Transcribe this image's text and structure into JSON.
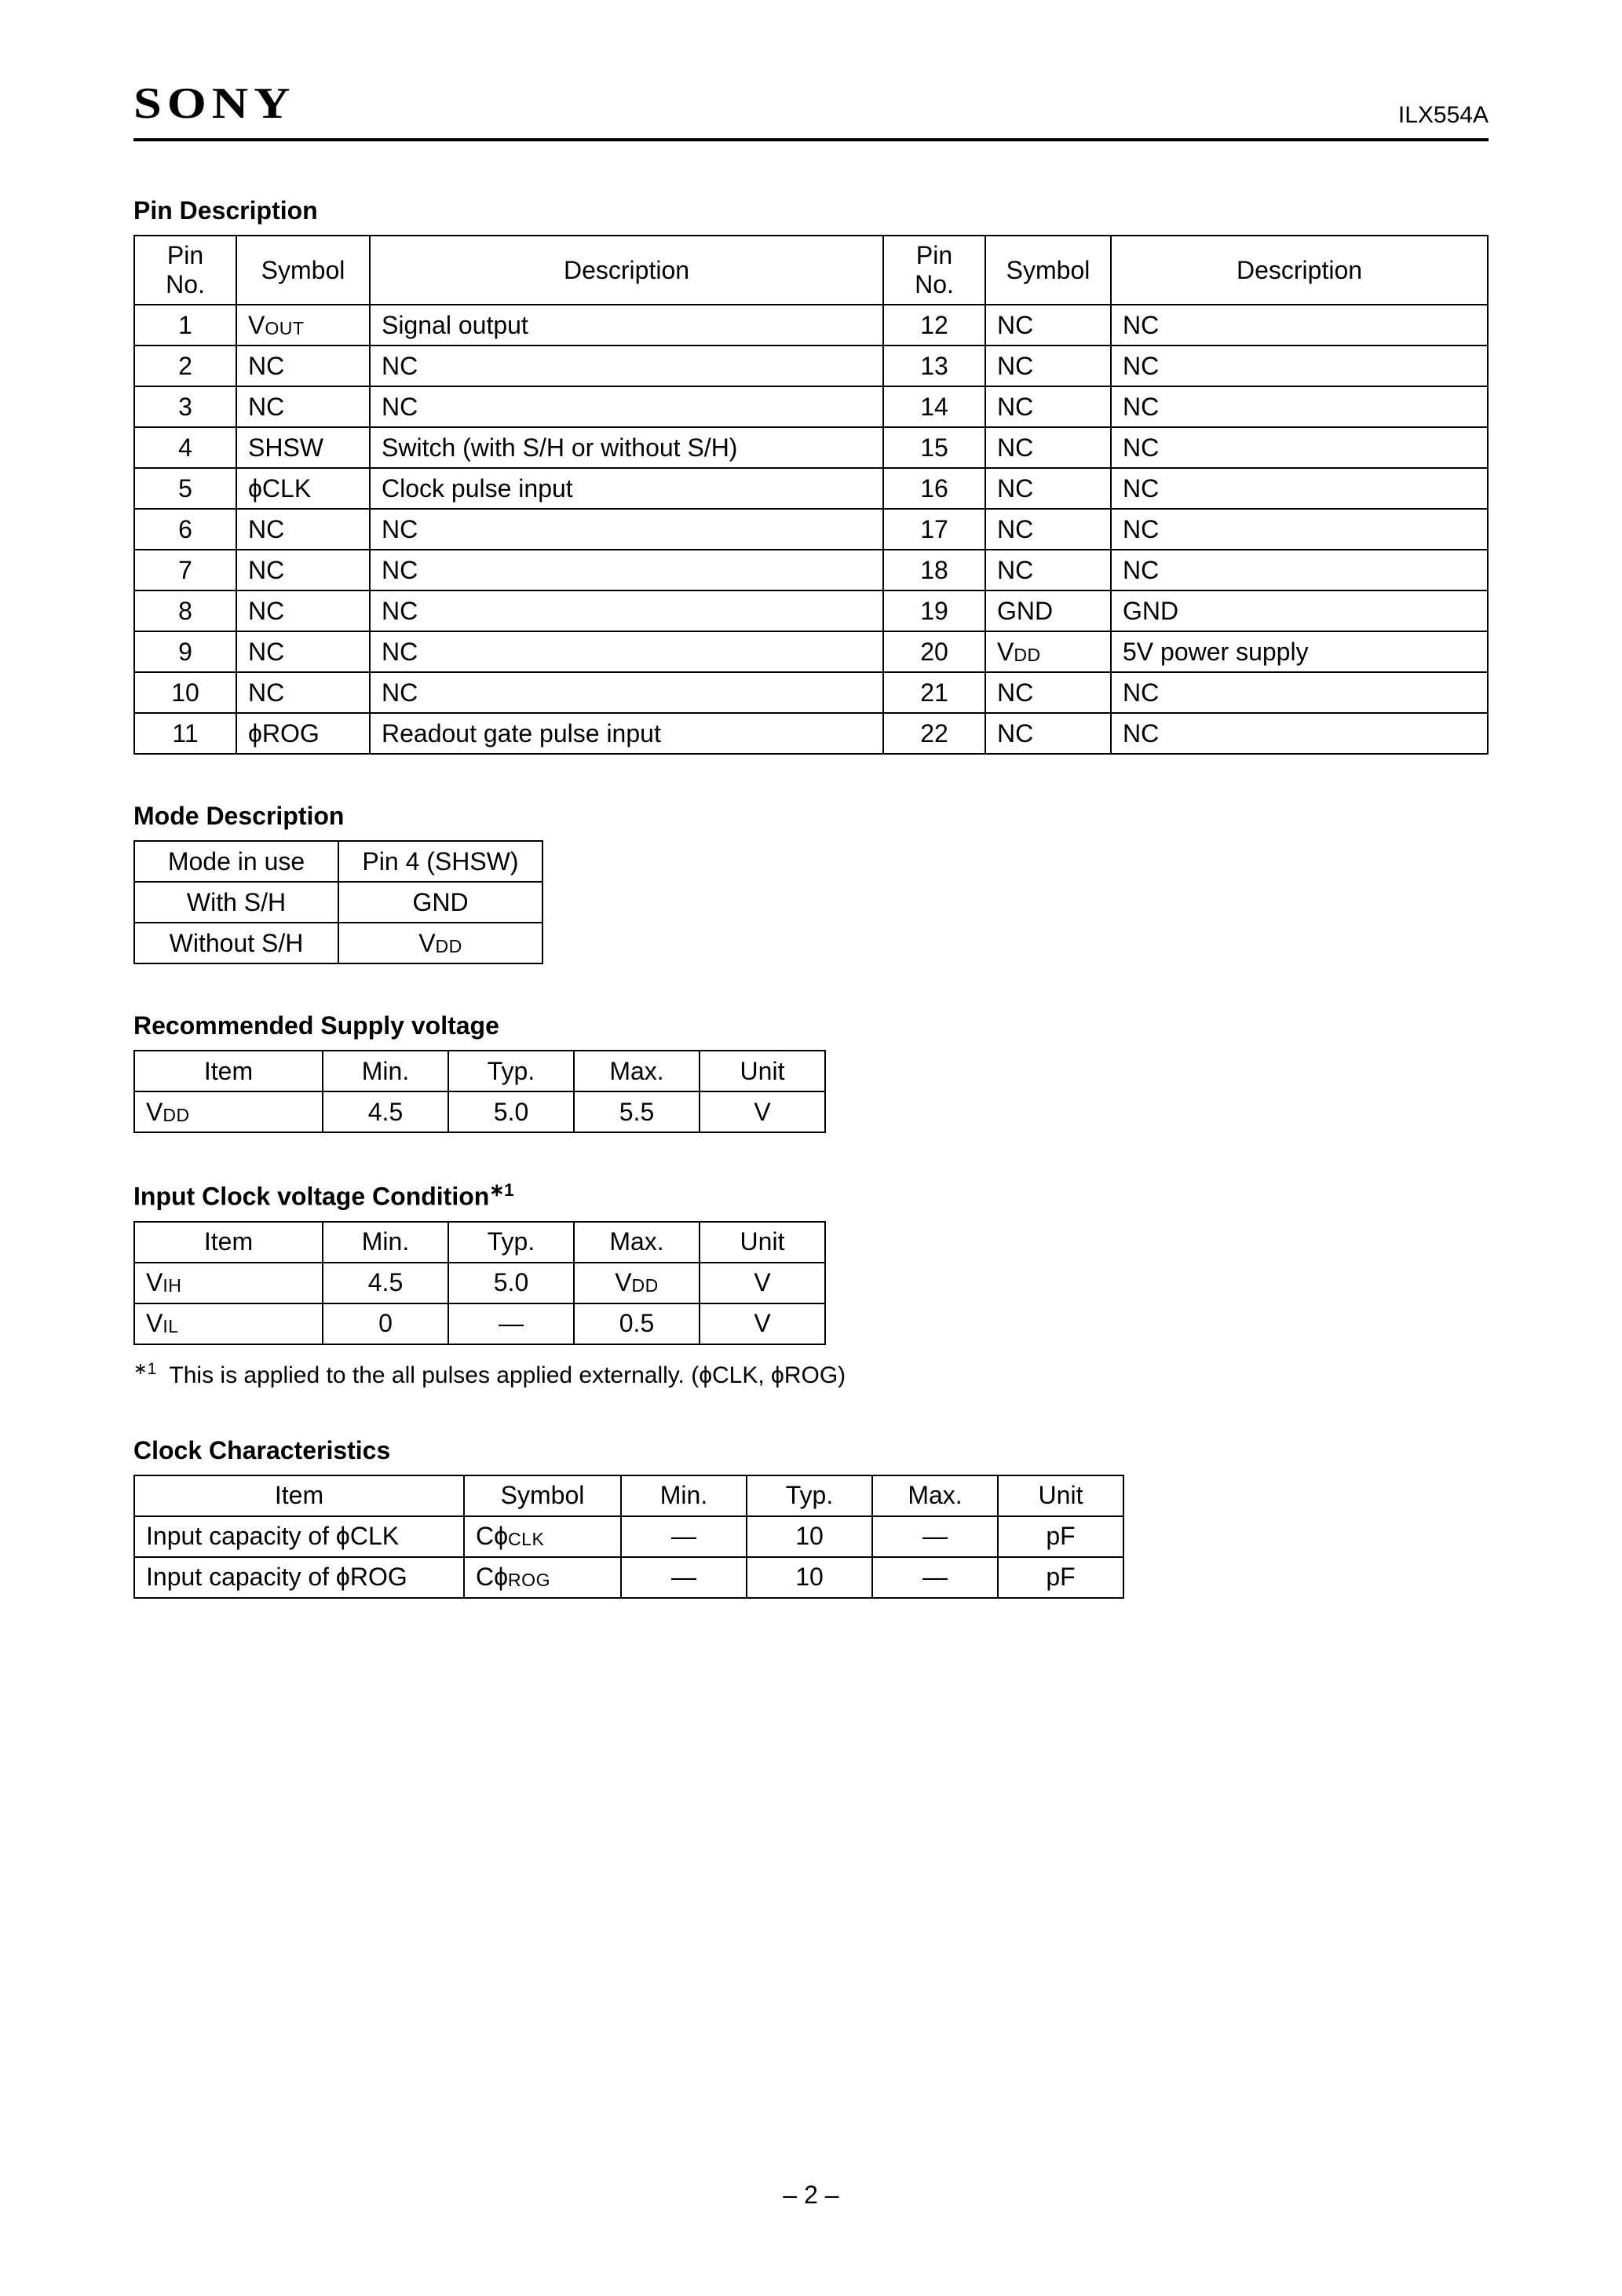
{
  "header": {
    "brand": "SONY",
    "part_no": "ILX554A"
  },
  "pin_description": {
    "title": "Pin Description",
    "headers": {
      "pin_no": "Pin No.",
      "symbol": "Symbol",
      "description": "Description"
    },
    "rows": [
      {
        "left": {
          "pin": "1",
          "symbol_html": "V<span class='sub'>OUT</span>",
          "desc": "Signal output"
        },
        "right": {
          "pin": "12",
          "symbol_html": "NC",
          "desc": "NC"
        }
      },
      {
        "left": {
          "pin": "2",
          "symbol_html": "NC",
          "desc": "NC"
        },
        "right": {
          "pin": "13",
          "symbol_html": "NC",
          "desc": "NC"
        }
      },
      {
        "left": {
          "pin": "3",
          "symbol_html": "NC",
          "desc": "NC"
        },
        "right": {
          "pin": "14",
          "symbol_html": "NC",
          "desc": "NC"
        }
      },
      {
        "left": {
          "pin": "4",
          "symbol_html": "SHSW",
          "desc": "Switch (with S/H or without S/H)"
        },
        "right": {
          "pin": "15",
          "symbol_html": "NC",
          "desc": "NC"
        }
      },
      {
        "left": {
          "pin": "5",
          "symbol_html": "ϕCLK",
          "desc": "Clock pulse input"
        },
        "right": {
          "pin": "16",
          "symbol_html": "NC",
          "desc": "NC"
        }
      },
      {
        "left": {
          "pin": "6",
          "symbol_html": "NC",
          "desc": "NC"
        },
        "right": {
          "pin": "17",
          "symbol_html": "NC",
          "desc": "NC"
        }
      },
      {
        "left": {
          "pin": "7",
          "symbol_html": "NC",
          "desc": "NC"
        },
        "right": {
          "pin": "18",
          "symbol_html": "NC",
          "desc": "NC"
        }
      },
      {
        "left": {
          "pin": "8",
          "symbol_html": "NC",
          "desc": "NC"
        },
        "right": {
          "pin": "19",
          "symbol_html": "GND",
          "desc": "GND"
        }
      },
      {
        "left": {
          "pin": "9",
          "symbol_html": "NC",
          "desc": "NC"
        },
        "right": {
          "pin": "20",
          "symbol_html": "V<span class='sub'>DD</span>",
          "desc": "5V power supply"
        }
      },
      {
        "left": {
          "pin": "10",
          "symbol_html": "NC",
          "desc": "NC"
        },
        "right": {
          "pin": "21",
          "symbol_html": "NC",
          "desc": "NC"
        }
      },
      {
        "left": {
          "pin": "11",
          "symbol_html": "ϕROG",
          "desc": "Readout gate pulse input"
        },
        "right": {
          "pin": "22",
          "symbol_html": "NC",
          "desc": "NC"
        }
      }
    ]
  },
  "mode_description": {
    "title": "Mode Description",
    "headers": {
      "mode": "Mode in use",
      "pin4": "Pin 4 (SHSW)"
    },
    "rows": [
      {
        "mode": "With S/H",
        "value_html": "GND"
      },
      {
        "mode": "Without S/H",
        "value_html": "V<span class='sub'>DD</span>"
      }
    ]
  },
  "supply_voltage": {
    "title": "Recommended Supply voltage",
    "headers": {
      "item": "Item",
      "min": "Min.",
      "typ": "Typ.",
      "max": "Max.",
      "unit": "Unit"
    },
    "rows": [
      {
        "item_html": "V<span class='sub'>DD</span>",
        "min": "4.5",
        "typ": "5.0",
        "max": "5.5",
        "unit": "V"
      }
    ]
  },
  "input_clock": {
    "title_html": "Input Clock voltage Condition<span class='sup-ref'>∗1</span>",
    "headers": {
      "item": "Item",
      "min": "Min.",
      "typ": "Typ.",
      "max": "Max.",
      "unit": "Unit"
    },
    "rows": [
      {
        "item_html": "V<span class='sub'>IH</span>",
        "min": "4.5",
        "typ": "5.0",
        "max_html": "V<span class='sub'>DD</span>",
        "unit": "V"
      },
      {
        "item_html": "V<span class='sub'>IL</span>",
        "min": "0",
        "typ": "—",
        "max_html": "0.5",
        "unit": "V"
      }
    ],
    "footnote_html": "<sup>∗1</sup>&nbsp; This is applied to the all pulses applied externally. (ϕCLK, ϕROG)"
  },
  "clock_characteristics": {
    "title": "Clock Characteristics",
    "headers": {
      "item": "Item",
      "symbol": "Symbol",
      "min": "Min.",
      "typ": "Typ.",
      "max": "Max.",
      "unit": "Unit"
    },
    "rows": [
      {
        "item": "Input capacity of ϕCLK",
        "symbol_html": "Cϕ<span class='sub'>CLK</span>",
        "min": "—",
        "typ": "10",
        "max": "—",
        "unit": "pF"
      },
      {
        "item": "Input capacity of ϕROG",
        "symbol_html": "Cϕ<span class='sub'>ROG</span>",
        "min": "—",
        "typ": "10",
        "max": "—",
        "unit": "pF"
      }
    ]
  },
  "page_number": "– 2 –"
}
